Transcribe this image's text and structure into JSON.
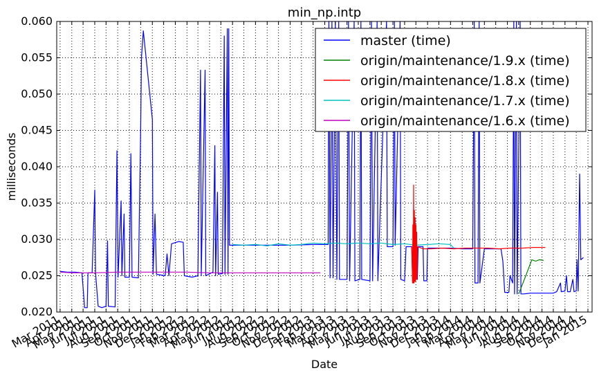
{
  "chart_data": {
    "type": "line",
    "title": "min_np.intp",
    "xlabel": "Date",
    "ylabel": "milliseconds",
    "x_tick_labels": [
      "Mar 2011",
      "Apr 2011",
      "May 2011",
      "Jun 2011",
      "Jul 2011",
      "Aug 2011",
      "Sep 2011",
      "Oct 2011",
      "Nov 2011",
      "Dec 2011",
      "Jan 2012",
      "Feb 2012",
      "Mar 2012",
      "Apr 2012",
      "May 2012",
      "Jun 2012",
      "Jul 2012",
      "Aug 2012",
      "Sep 2012",
      "Oct 2012",
      "Nov 2012",
      "Dec 2012",
      "Jan 2013",
      "Feb 2013",
      "Mar 2013",
      "Apr 2013",
      "May 2013",
      "Jun 2013",
      "Jul 2013",
      "Aug 2013",
      "Sep 2013",
      "Oct 2013",
      "Nov 2013",
      "Dec 2013",
      "Jan 2014",
      "Feb 2014",
      "Mar 2014",
      "Apr 2014",
      "May 2014",
      "Jun 2014",
      "Jul 2014",
      "Aug 2014",
      "Sep 2014",
      "Oct 2014",
      "Nov 2014",
      "Dec 2014",
      "Jan 2015"
    ],
    "x_range": [
      "2011-02-20",
      "2015-01-12"
    ],
    "y_ticks": [
      "0.020",
      "0.025",
      "0.030",
      "0.035",
      "0.040",
      "0.045",
      "0.050",
      "0.055",
      "0.060"
    ],
    "ylim": [
      0.02,
      0.06
    ],
    "grid": true,
    "legend_position": "top-right",
    "series": [
      {
        "name": "master (time)",
        "color": "#0000ff",
        "points": [
          [
            "2011-03-01",
            0.0256
          ],
          [
            "2011-03-20",
            0.0255
          ],
          [
            "2011-04-10",
            0.0255
          ],
          [
            "2011-04-28",
            0.0254
          ],
          [
            "2011-05-05",
            0.0206
          ],
          [
            "2011-05-12",
            0.0206
          ],
          [
            "2011-05-14",
            0.0254
          ],
          [
            "2011-05-25",
            0.0254
          ],
          [
            "2011-06-01",
            0.0368
          ],
          [
            "2011-06-03",
            0.0254
          ],
          [
            "2011-06-10",
            0.0208
          ],
          [
            "2011-06-20",
            0.0206
          ],
          [
            "2011-07-01",
            0.0208
          ],
          [
            "2011-07-05",
            0.0298
          ],
          [
            "2011-07-07",
            0.0208
          ],
          [
            "2011-07-25",
            0.0207
          ],
          [
            "2011-07-30",
            0.0422
          ],
          [
            "2011-08-02",
            0.0248
          ],
          [
            "2011-08-10",
            0.0353
          ],
          [
            "2011-08-12",
            0.025
          ],
          [
            "2011-08-18",
            0.0335
          ],
          [
            "2011-08-20",
            0.0248
          ],
          [
            "2011-09-01",
            0.0248
          ],
          [
            "2011-09-05",
            0.0418
          ],
          [
            "2011-09-08",
            0.0248
          ],
          [
            "2011-09-25",
            0.0247
          ],
          [
            "2011-10-01",
            0.0453
          ],
          [
            "2011-10-03",
            0.055
          ],
          [
            "2011-10-08",
            0.0587
          ],
          [
            "2011-11-01",
            0.0465
          ],
          [
            "2011-11-03",
            0.0252
          ],
          [
            "2011-11-08",
            0.0335
          ],
          [
            "2011-11-12",
            0.0252
          ],
          [
            "2011-12-05",
            0.025
          ],
          [
            "2011-12-10",
            0.028
          ],
          [
            "2011-12-15",
            0.025
          ],
          [
            "2011-12-22",
            0.0294
          ],
          [
            "2012-01-10",
            0.0297
          ],
          [
            "2012-01-22",
            0.0296
          ],
          [
            "2012-01-25",
            0.025
          ],
          [
            "2012-02-15",
            0.0248
          ],
          [
            "2012-03-01",
            0.025
          ],
          [
            "2012-03-08",
            0.0533
          ],
          [
            "2012-03-10",
            0.025
          ],
          [
            "2012-03-20",
            0.0533
          ],
          [
            "2012-03-22",
            0.025
          ],
          [
            "2012-04-10",
            0.0255
          ],
          [
            "2012-04-15",
            0.0429
          ],
          [
            "2012-04-17",
            0.025
          ],
          [
            "2012-04-22",
            0.0365
          ],
          [
            "2012-04-24",
            0.0252
          ],
          [
            "2012-05-05",
            0.0253
          ],
          [
            "2012-05-10",
            0.058
          ],
          [
            "2012-05-12",
            0.0252
          ],
          [
            "2012-05-18",
            0.059
          ],
          [
            "2012-05-20",
            0.0252
          ],
          [
            "2012-05-22",
            0.059
          ],
          [
            "2012-05-24",
            0.0292
          ],
          [
            "2012-07-01",
            0.0292
          ],
          [
            "2012-09-01",
            0.0292
          ],
          [
            "2012-11-01",
            0.0292
          ],
          [
            "2013-01-01",
            0.0293
          ],
          [
            "2013-02-01",
            0.0293
          ],
          [
            "2013-02-10",
            0.0293
          ],
          [
            "2013-02-12",
            0.06
          ],
          [
            "2013-02-15",
            0.0247
          ],
          [
            "2013-02-20",
            0.06
          ],
          [
            "2013-02-23",
            0.0247
          ],
          [
            "2013-03-01",
            0.06
          ],
          [
            "2013-03-05",
            0.0245
          ],
          [
            "2013-03-10",
            0.06
          ],
          [
            "2013-03-12",
            0.0245
          ],
          [
            "2013-04-01",
            0.0245
          ],
          [
            "2013-04-05",
            0.06
          ],
          [
            "2013-04-08",
            0.0243
          ],
          [
            "2013-04-20",
            0.06
          ],
          [
            "2013-04-22",
            0.0243
          ],
          [
            "2013-05-05",
            0.0245
          ],
          [
            "2013-05-08",
            0.06
          ],
          [
            "2013-05-10",
            0.0245
          ],
          [
            "2013-06-01",
            0.0243
          ],
          [
            "2013-06-05",
            0.06
          ],
          [
            "2013-06-08",
            0.0243
          ],
          [
            "2013-06-20",
            0.06
          ],
          [
            "2013-06-22",
            0.0243
          ],
          [
            "2013-07-15",
            0.06
          ],
          [
            "2013-07-17",
            0.029
          ],
          [
            "2013-08-01",
            0.029
          ],
          [
            "2013-08-05",
            0.06
          ],
          [
            "2013-08-07",
            0.0292
          ],
          [
            "2013-08-20",
            0.06
          ],
          [
            "2013-08-22",
            0.0245
          ],
          [
            "2013-09-01",
            0.0243
          ],
          [
            "2013-09-05",
            0.029
          ],
          [
            "2013-09-20",
            0.029
          ],
          [
            "2013-09-22",
            0.0245
          ],
          [
            "2013-10-05",
            0.0245
          ],
          [
            "2013-10-07",
            0.029
          ],
          [
            "2013-10-20",
            0.029
          ],
          [
            "2013-10-22",
            0.0243
          ],
          [
            "2013-10-30",
            0.0243
          ],
          [
            "2013-11-01",
            0.0288
          ],
          [
            "2013-12-10",
            0.0288
          ],
          [
            "2014-01-01",
            0.0288
          ],
          [
            "2014-02-01",
            0.0287
          ],
          [
            "2014-03-01",
            0.0287
          ],
          [
            "2014-03-05",
            0.06
          ],
          [
            "2014-03-07",
            0.024
          ],
          [
            "2014-03-15",
            0.024
          ],
          [
            "2014-03-18",
            0.06
          ],
          [
            "2014-03-20",
            0.024
          ],
          [
            "2014-04-01",
            0.0287
          ],
          [
            "2014-05-15",
            0.0287
          ],
          [
            "2014-05-20",
            0.027
          ],
          [
            "2014-05-25",
            0.0227
          ],
          [
            "2014-06-05",
            0.0227
          ],
          [
            "2014-06-08",
            0.025
          ],
          [
            "2014-06-15",
            0.024
          ],
          [
            "2014-06-18",
            0.06
          ],
          [
            "2014-06-20",
            0.0225
          ],
          [
            "2014-06-25",
            0.06
          ],
          [
            "2014-06-27",
            0.0225
          ],
          [
            "2014-07-05",
            0.06
          ],
          [
            "2014-07-07",
            0.0225
          ],
          [
            "2014-07-15",
            0.0225
          ],
          [
            "2014-08-01",
            0.0226
          ],
          [
            "2014-09-01",
            0.0226
          ],
          [
            "2014-10-01",
            0.0226
          ],
          [
            "2014-10-10",
            0.0228
          ],
          [
            "2014-10-20",
            0.024
          ],
          [
            "2014-10-22",
            0.0228
          ],
          [
            "2014-11-01",
            0.0229
          ],
          [
            "2014-11-05",
            0.025
          ],
          [
            "2014-11-08",
            0.0228
          ],
          [
            "2014-11-15",
            0.0228
          ],
          [
            "2014-11-22",
            0.0245
          ],
          [
            "2014-11-25",
            0.0228
          ],
          [
            "2014-12-01",
            0.0229
          ],
          [
            "2014-12-03",
            0.0272
          ],
          [
            "2014-12-06",
            0.0229
          ],
          [
            "2014-12-10",
            0.039
          ],
          [
            "2014-12-13",
            0.0272
          ],
          [
            "2014-12-20",
            0.0275
          ]
        ]
      },
      {
        "name": "origin/maintenance/1.9.x (time)",
        "color": "#008000",
        "points": [
          [
            "2014-07-01",
            0.0225
          ],
          [
            "2014-07-20",
            0.025
          ],
          [
            "2014-08-05",
            0.0272
          ],
          [
            "2014-08-15",
            0.027
          ],
          [
            "2014-08-25",
            0.0272
          ],
          [
            "2014-09-05",
            0.0271
          ]
        ]
      },
      {
        "name": "origin/maintenance/1.8.x (time)",
        "color": "#ff0000",
        "points": [
          [
            "2013-09-20",
            0.029
          ],
          [
            "2013-09-22",
            0.024
          ],
          [
            "2013-09-23",
            0.032
          ],
          [
            "2013-09-24",
            0.024
          ],
          [
            "2013-09-25",
            0.0375
          ],
          [
            "2013-09-26",
            0.024
          ],
          [
            "2013-09-27",
            0.034
          ],
          [
            "2013-09-28",
            0.0242
          ],
          [
            "2013-09-29",
            0.033
          ],
          [
            "2013-09-30",
            0.0242
          ],
          [
            "2013-10-01",
            0.032
          ],
          [
            "2013-10-02",
            0.0245
          ],
          [
            "2013-10-03",
            0.031
          ],
          [
            "2013-10-04",
            0.0245
          ],
          [
            "2013-10-05",
            0.029
          ],
          [
            "2013-10-20",
            0.0287
          ],
          [
            "2013-11-10",
            0.0287
          ],
          [
            "2013-12-10",
            0.0288
          ],
          [
            "2014-01-10",
            0.0287
          ],
          [
            "2014-02-10",
            0.0288
          ],
          [
            "2014-03-10",
            0.0288
          ],
          [
            "2014-04-10",
            0.0288
          ],
          [
            "2014-05-10",
            0.0287
          ],
          [
            "2014-06-10",
            0.0288
          ],
          [
            "2014-07-10",
            0.0288
          ],
          [
            "2014-08-10",
            0.0289
          ],
          [
            "2014-09-10",
            0.0289
          ]
        ]
      },
      {
        "name": "origin/maintenance/1.7.x (time)",
        "color": "#00bfbf",
        "points": [
          [
            "2012-06-01",
            0.0293
          ],
          [
            "2012-07-01",
            0.0292
          ],
          [
            "2012-08-01",
            0.0293
          ],
          [
            "2012-09-01",
            0.0291
          ],
          [
            "2012-10-01",
            0.0294
          ],
          [
            "2012-11-01",
            0.0292
          ],
          [
            "2012-12-01",
            0.0293
          ],
          [
            "2013-01-01",
            0.0295
          ],
          [
            "2013-02-01",
            0.0294
          ],
          [
            "2013-03-01",
            0.0295
          ],
          [
            "2013-04-01",
            0.0294
          ],
          [
            "2013-05-01",
            0.0295
          ],
          [
            "2013-06-01",
            0.0294
          ],
          [
            "2013-07-01",
            0.0295
          ],
          [
            "2013-08-01",
            0.0293
          ],
          [
            "2013-09-01",
            0.0294
          ],
          [
            "2013-10-01",
            0.0292
          ],
          [
            "2013-11-01",
            0.0293
          ],
          [
            "2013-12-01",
            0.0294
          ],
          [
            "2014-01-01",
            0.0293
          ],
          [
            "2014-01-10",
            0.0288
          ]
        ]
      },
      {
        "name": "origin/maintenance/1.6.x (time)",
        "color": "#bf00bf",
        "points": [
          [
            "2011-03-01",
            0.0255
          ],
          [
            "2011-04-01",
            0.0254
          ],
          [
            "2011-06-01",
            0.0254
          ],
          [
            "2011-08-01",
            0.0255
          ],
          [
            "2011-10-01",
            0.0255
          ],
          [
            "2011-12-01",
            0.0255
          ],
          [
            "2012-02-01",
            0.0255
          ],
          [
            "2012-04-01",
            0.0254
          ],
          [
            "2012-06-01",
            0.0254
          ],
          [
            "2012-08-01",
            0.0254
          ],
          [
            "2012-10-01",
            0.0254
          ],
          [
            "2012-12-01",
            0.0254
          ],
          [
            "2013-01-20",
            0.0254
          ]
        ]
      }
    ]
  }
}
